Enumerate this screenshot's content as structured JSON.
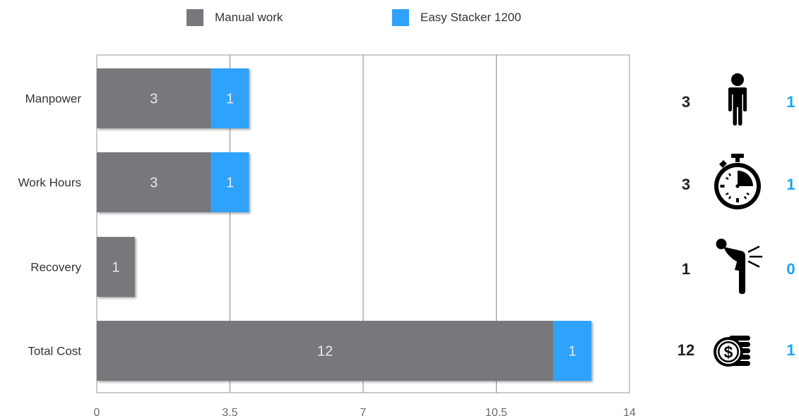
{
  "chart_data": {
    "type": "bar",
    "stacked": true,
    "orientation": "horizontal",
    "categories": [
      "Manpower",
      "Work Hours",
      "Recovery",
      "Total Cost"
    ],
    "series": [
      {
        "name": "Manual work",
        "color": "#76787c",
        "values": [
          3,
          3,
          1,
          12
        ],
        "labels": [
          "3",
          "3",
          "1",
          "12"
        ]
      },
      {
        "name": "Easy Stacker 1200",
        "color": "#2ea2fd",
        "values": [
          1,
          1,
          0,
          1
        ],
        "labels": [
          "1",
          "1",
          "",
          "1"
        ]
      }
    ],
    "xlim": [
      0,
      14
    ],
    "xticks": [
      0,
      3.5,
      7,
      10.5,
      14
    ],
    "xtick_labels": [
      "0",
      "3,5",
      "7",
      "10,5",
      "14"
    ],
    "gridlines": "vertical",
    "legend_position": "top-center",
    "title": "",
    "xlabel": "",
    "ylabel": ""
  },
  "side_panel": {
    "stacker_color": "#1aa6f0",
    "rows": [
      {
        "manual": "3",
        "icon": "person-icon",
        "stacker": "1"
      },
      {
        "manual": "3",
        "icon": "stopwatch-icon",
        "stacker": "1"
      },
      {
        "manual": "1",
        "icon": "back-pain-icon",
        "stacker": "0"
      },
      {
        "manual": "12",
        "icon": "coins-icon",
        "stacker": "1"
      }
    ]
  }
}
